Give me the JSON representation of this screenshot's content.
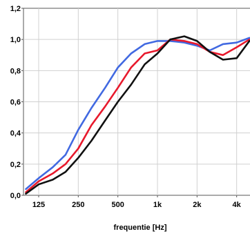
{
  "chart_data": {
    "type": "line",
    "title": "",
    "xlabel": "frequentie [Hz]",
    "ylabel": "",
    "x_scale": "log",
    "x_ticks": [
      125,
      250,
      500,
      1000,
      2000,
      4000
    ],
    "x_tick_labels": [
      "125",
      "250",
      "500",
      "1k",
      "2k",
      "4k"
    ],
    "y_ticks": [
      0.0,
      0.2,
      0.4,
      0.6,
      0.8,
      1.0,
      1.2
    ],
    "y_tick_labels": [
      "0,0",
      "0,2",
      "0,4",
      "0,6",
      "0,8",
      "1,0",
      "1,2"
    ],
    "ylim": [
      0,
      1.2
    ],
    "grid": true,
    "x": [
      100,
      125,
      160,
      200,
      250,
      315,
      400,
      500,
      630,
      800,
      1000,
      1250,
      1600,
      2000,
      2500,
      3150,
      4000,
      5000
    ],
    "series": [
      {
        "color": "#4169e1",
        "values": [
          0.04,
          0.11,
          0.18,
          0.26,
          0.42,
          0.56,
          0.69,
          0.82,
          0.91,
          0.97,
          0.99,
          0.99,
          0.98,
          0.96,
          0.93,
          0.97,
          0.98,
          1.01
        ]
      },
      {
        "color": "#e8192c",
        "values": [
          0.02,
          0.09,
          0.14,
          0.2,
          0.3,
          0.45,
          0.57,
          0.69,
          0.82,
          0.91,
          0.93,
          1.0,
          0.99,
          0.97,
          0.92,
          0.9,
          0.95,
          1.0
        ]
      },
      {
        "color": "#111111",
        "values": [
          0.01,
          0.07,
          0.1,
          0.15,
          0.24,
          0.35,
          0.48,
          0.6,
          0.71,
          0.84,
          0.91,
          1.0,
          1.02,
          0.99,
          0.92,
          0.87,
          0.88,
          0.99
        ]
      }
    ]
  }
}
